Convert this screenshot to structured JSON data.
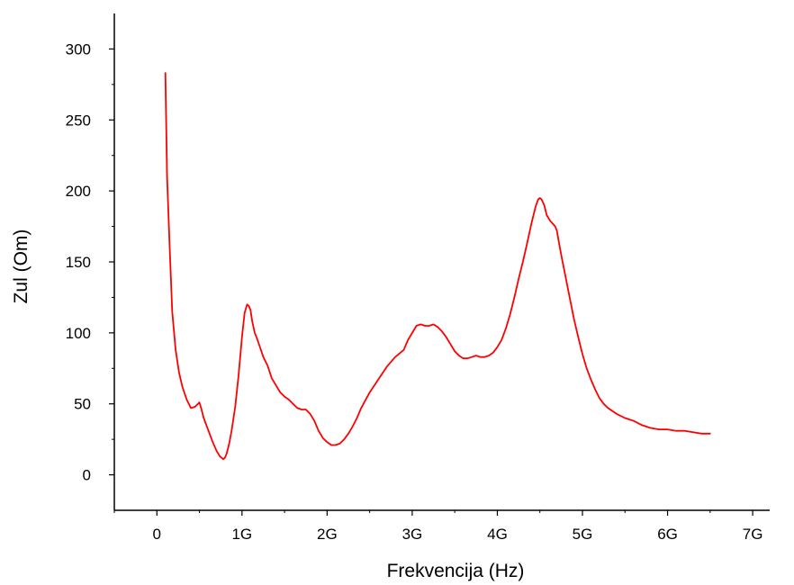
{
  "chart_data": {
    "type": "line",
    "xlabel": "Frekvencija (Hz)",
    "ylabel": "Zul (Om)",
    "xlim": [
      -0.5,
      7.2
    ],
    "ylim": [
      -25,
      325
    ],
    "x_ticks": [
      {
        "value": 0,
        "label": "0"
      },
      {
        "value": 1,
        "label": "1G"
      },
      {
        "value": 2,
        "label": "2G"
      },
      {
        "value": 3,
        "label": "3G"
      },
      {
        "value": 4,
        "label": "4G"
      },
      {
        "value": 5,
        "label": "5G"
      },
      {
        "value": 6,
        "label": "6G"
      },
      {
        "value": 7,
        "label": "7G"
      }
    ],
    "y_ticks": [
      {
        "value": 0,
        "label": "0"
      },
      {
        "value": 50,
        "label": "50"
      },
      {
        "value": 100,
        "label": "100"
      },
      {
        "value": 150,
        "label": "150"
      },
      {
        "value": 200,
        "label": "200"
      },
      {
        "value": 250,
        "label": "250"
      },
      {
        "value": 300,
        "label": "300"
      }
    ],
    "grid": false,
    "series": [
      {
        "color": "#ff0000",
        "x": [
          0.1,
          0.12,
          0.15,
          0.18,
          0.22,
          0.26,
          0.3,
          0.35,
          0.4,
          0.45,
          0.5,
          0.52,
          0.55,
          0.6,
          0.65,
          0.7,
          0.74,
          0.78,
          0.8,
          0.82,
          0.85,
          0.88,
          0.92,
          0.96,
          1.0,
          1.03,
          1.06,
          1.08,
          1.1,
          1.12,
          1.15,
          1.17,
          1.2,
          1.25,
          1.3,
          1.35,
          1.4,
          1.45,
          1.5,
          1.55,
          1.6,
          1.65,
          1.7,
          1.75,
          1.8,
          1.85,
          1.9,
          1.95,
          2.0,
          2.05,
          2.1,
          2.15,
          2.2,
          2.25,
          2.3,
          2.35,
          2.4,
          2.5,
          2.6,
          2.7,
          2.8,
          2.9,
          2.95,
          3.0,
          3.05,
          3.1,
          3.15,
          3.2,
          3.25,
          3.3,
          3.35,
          3.4,
          3.5,
          3.55,
          3.6,
          3.65,
          3.7,
          3.75,
          3.8,
          3.85,
          3.9,
          3.95,
          4.0,
          4.05,
          4.1,
          4.15,
          4.2,
          4.25,
          4.3,
          4.35,
          4.4,
          4.45,
          4.48,
          4.5,
          4.52,
          4.55,
          4.58,
          4.62,
          4.65,
          4.68,
          4.7,
          4.72,
          4.75,
          4.8,
          4.85,
          4.9,
          4.95,
          5.0,
          5.05,
          5.1,
          5.15,
          5.2,
          5.25,
          5.3,
          5.4,
          5.5,
          5.6,
          5.7,
          5.8,
          5.9,
          6.0,
          6.1,
          6.2,
          6.3,
          6.4,
          6.45,
          6.5
        ],
        "y": [
          283,
          210,
          160,
          115,
          88,
          72,
          62,
          53,
          47,
          48,
          51,
          47,
          40,
          32,
          24,
          17,
          13,
          11,
          12,
          15,
          22,
          32,
          48,
          70,
          97,
          114,
          120,
          119,
          116,
          108,
          100,
          97,
          92,
          83,
          77,
          68,
          63,
          58,
          55,
          53,
          50,
          47,
          46,
          46,
          43,
          38,
          31,
          26,
          23,
          21,
          21,
          22,
          25,
          29,
          34,
          40,
          47,
          58,
          67,
          76,
          83,
          88,
          95,
          100,
          105,
          106,
          105,
          105,
          106,
          104,
          101,
          97,
          87,
          84,
          82,
          82,
          83,
          84,
          83,
          83,
          84,
          86,
          90,
          95,
          103,
          113,
          125,
          138,
          150,
          163,
          177,
          189,
          194,
          195,
          194,
          190,
          183,
          179,
          177,
          175,
          172,
          165,
          155,
          140,
          125,
          110,
          97,
          85,
          75,
          67,
          60,
          54,
          50,
          47,
          43,
          40,
          38,
          35,
          33,
          32,
          32,
          31,
          31,
          30,
          29,
          29,
          29
        ]
      }
    ]
  }
}
